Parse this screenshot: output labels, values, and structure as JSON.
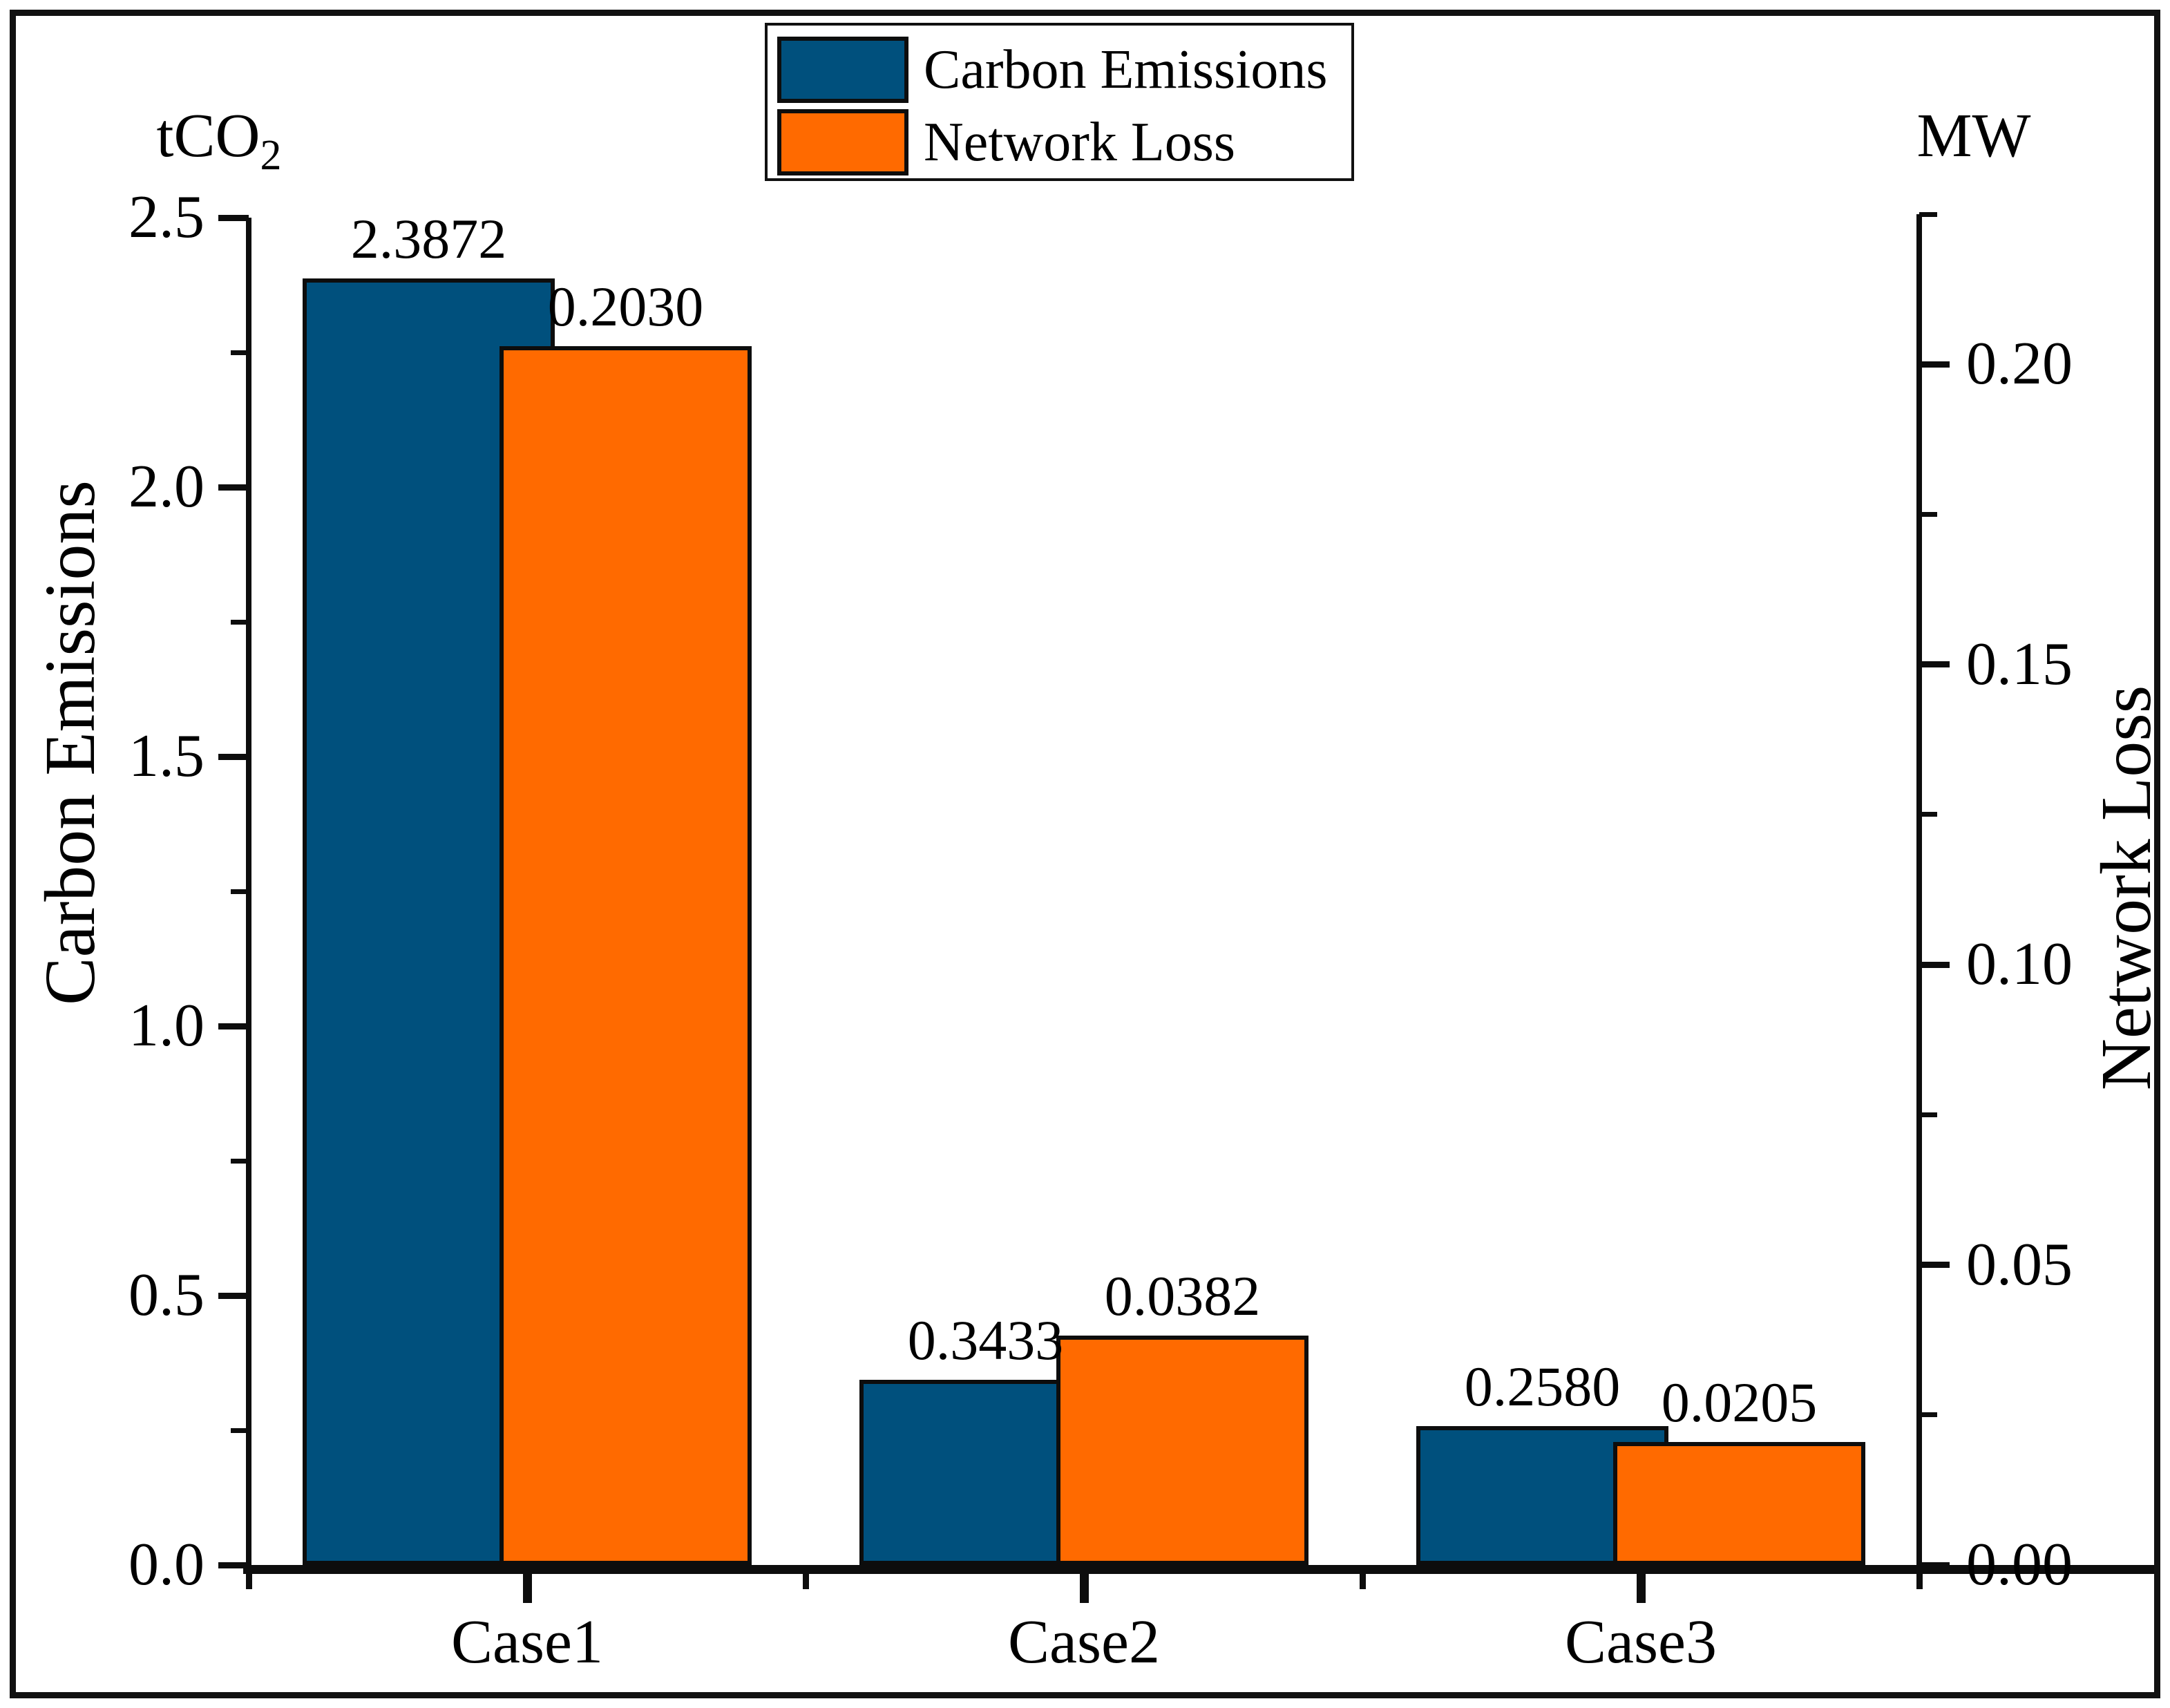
{
  "legend": {
    "items": [
      {
        "label": "Carbon Emissions",
        "color": "#00507d"
      },
      {
        "label": "Network Loss",
        "color": "#ff6a00"
      }
    ]
  },
  "left_axis": {
    "unit_main": "tCO",
    "unit_sub": "2",
    "title": "Carbon Emissions",
    "tick_labels": [
      "0.0",
      "0.5",
      "1.0",
      "1.5",
      "2.0",
      "2.5"
    ],
    "tick_values": [
      0,
      0.5,
      1.0,
      1.5,
      2.0,
      2.5
    ],
    "minor_tick_values": [
      0.25,
      0.75,
      1.25,
      1.75,
      2.25
    ],
    "min": 0,
    "max": 2.5
  },
  "right_axis": {
    "unit": "MW",
    "title": "Network Loss",
    "tick_labels": [
      "0.00",
      "0.05",
      "0.10",
      "0.15",
      "0.20"
    ],
    "tick_values": [
      0,
      0.05,
      0.1,
      0.15,
      0.2
    ],
    "minor_tick_values": [
      0.025,
      0.075,
      0.125,
      0.175,
      0.225
    ],
    "min": 0,
    "max": 0.225
  },
  "x_axis": {
    "categories": [
      "Case1",
      "Case2",
      "Case3"
    ]
  },
  "chart_data": {
    "type": "bar",
    "categories": [
      "Case1",
      "Case2",
      "Case3"
    ],
    "series": [
      {
        "name": "Carbon Emissions",
        "axis": "left",
        "color": "#00507d",
        "values": [
          2.3872,
          0.3433,
          0.258
        ],
        "value_labels": [
          "2.3872",
          "0.3433",
          "0.2580"
        ]
      },
      {
        "name": "Network Loss",
        "axis": "right",
        "color": "#ff6a00",
        "values": [
          0.203,
          0.0382,
          0.0205
        ],
        "value_labels": [
          "0.2030",
          "0.0382",
          "0.0205"
        ]
      }
    ],
    "left_ylabel": "Carbon Emissions",
    "right_ylabel": "Network Loss",
    "left_unit": "tCO2",
    "right_unit": "MW",
    "left_ylim": [
      0,
      2.5
    ],
    "right_ylim": [
      0,
      0.225
    ],
    "legend_position": "top-center",
    "grid": false,
    "bar_style": "overlapped, black outlines, value labels above bars"
  }
}
